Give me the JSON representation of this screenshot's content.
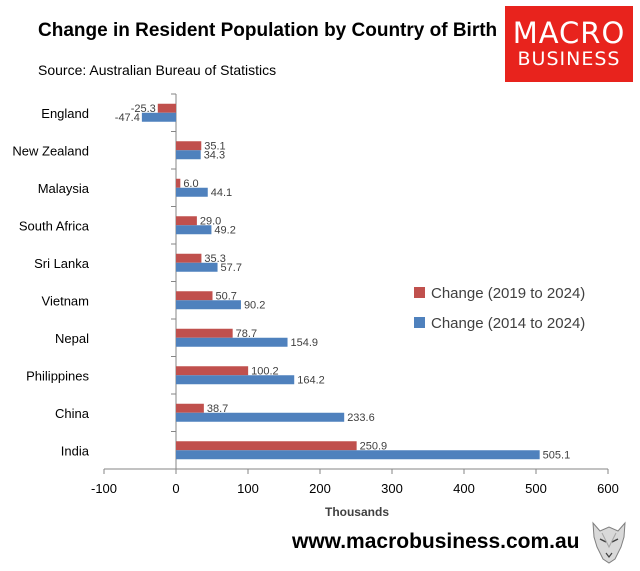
{
  "header": {
    "title": "Change in Resident Population by Country of Birth",
    "source": "Source: Australian Bureau of Statistics"
  },
  "logo": {
    "line1": "MACRO",
    "line2": "BUSINESS"
  },
  "footer": {
    "url": "www.macrobusiness.com.au"
  },
  "colors": {
    "red": "#c0504d",
    "blue": "#4f81bd"
  },
  "chart_data": {
    "type": "bar",
    "orientation": "horizontal",
    "categories": [
      "England",
      "New Zealand",
      "Malaysia",
      "South Africa",
      "Sri Lanka",
      "Vietnam",
      "Nepal",
      "Philippines",
      "China",
      "India"
    ],
    "series": [
      {
        "name": "Change (2019 to 2024)",
        "color": "#c0504d",
        "values": [
          -25.3,
          35.1,
          6.0,
          29.0,
          35.3,
          50.7,
          78.7,
          100.2,
          38.7,
          250.9
        ]
      },
      {
        "name": "Change (2014 to 2024)",
        "color": "#4f81bd",
        "values": [
          -47.4,
          34.3,
          44.1,
          49.2,
          57.7,
          90.2,
          154.9,
          164.2,
          233.6,
          505.1
        ]
      }
    ],
    "xlabel": "Thousands",
    "xlim": [
      -100,
      600
    ],
    "xticks": [
      "-100",
      "0",
      "100",
      "200",
      "300",
      "400",
      "500",
      "600"
    ],
    "grid": false,
    "legend_position": "right"
  }
}
